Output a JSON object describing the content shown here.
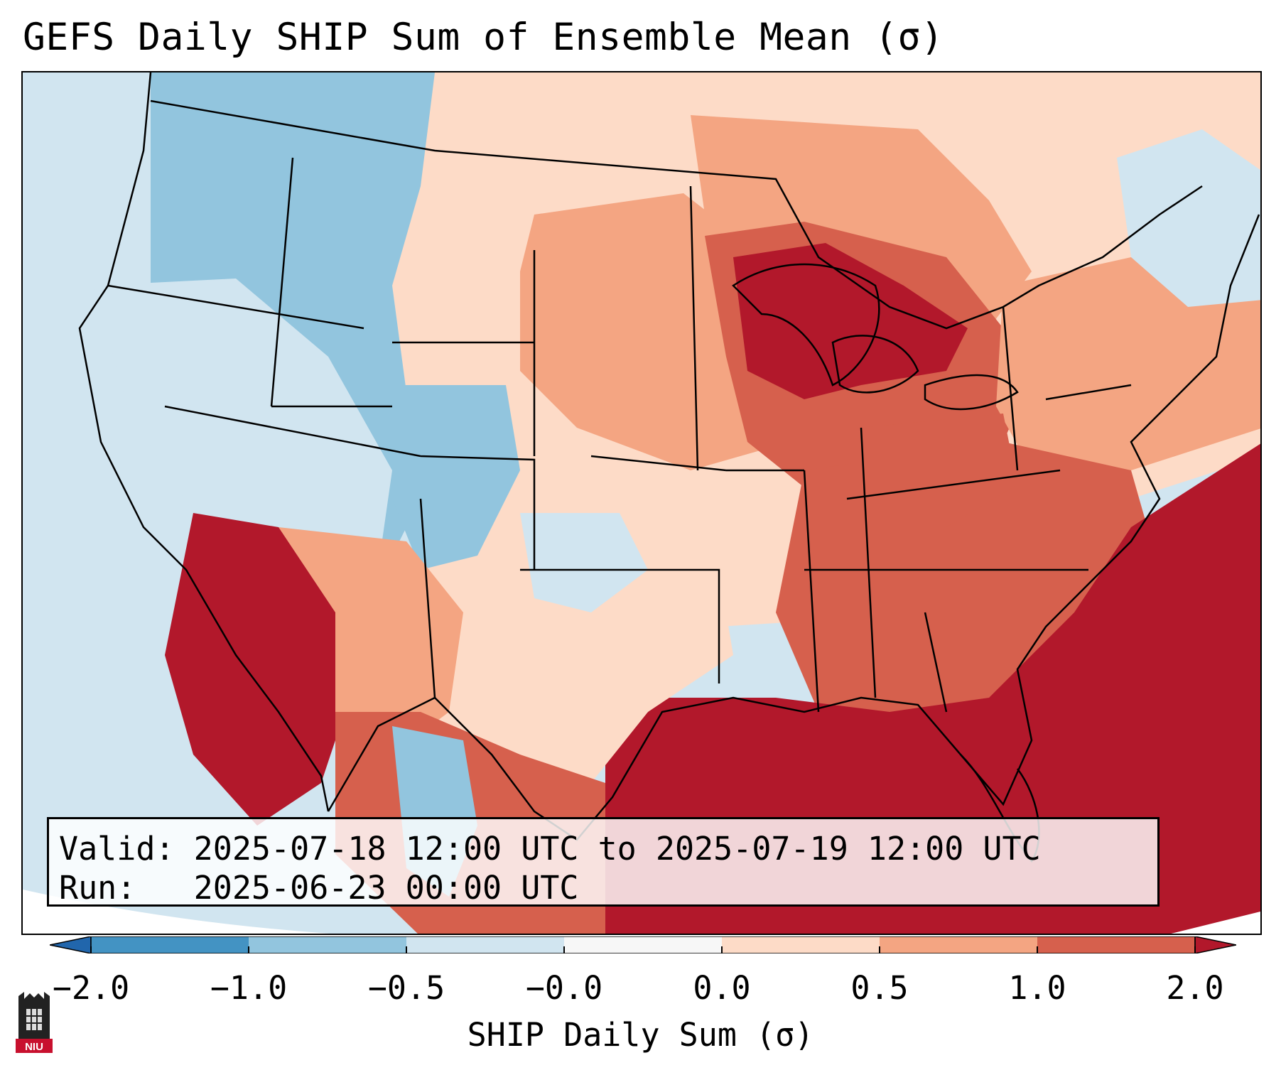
{
  "title": "GEFS Daily SHIP Sum of Ensemble Mean (σ)",
  "info_box": {
    "valid_line": "Valid: 2025-07-18 12:00 UTC to 2025-07-19 12:00 UTC",
    "run_line": "Run:   2025-06-23 00:00 UTC"
  },
  "colorbar": {
    "label": "SHIP Daily Sum (σ)",
    "tick_labels": [
      "−2.0",
      "−1.0",
      "−0.5",
      "−0.0",
      "0.0",
      "0.5",
      "1.0",
      "2.0"
    ],
    "extend": "both",
    "bins": [
      {
        "range": "< -2.0",
        "color": "#2166ac"
      },
      {
        "range": "-2.0 to -1.0",
        "color": "#4393c3"
      },
      {
        "range": "-1.0 to -0.5",
        "color": "#92c5de"
      },
      {
        "range": "-0.5 to -0.0",
        "color": "#d1e5f0"
      },
      {
        "range": "-0.0 to 0.0",
        "color": "#f7f7f7"
      },
      {
        "range": "0.0 to 0.5",
        "color": "#fddbc7"
      },
      {
        "range": "0.5 to 1.0",
        "color": "#f4a582"
      },
      {
        "range": "1.0 to 2.0",
        "color": "#d6604d"
      },
      {
        "range": "> 2.0",
        "color": "#b2182b"
      }
    ]
  },
  "map": {
    "region": "Contiguous United States",
    "projection": "conic",
    "features": [
      "state boundaries",
      "coastlines",
      "Great Lakes"
    ],
    "regional_values": [
      {
        "region": "Pacific Northwest / Northern Rockies",
        "category": "-1.0 to -0.5"
      },
      {
        "region": "Great Basin / Intermountain West",
        "category": "-0.5 to -0.0"
      },
      {
        "region": "Colorado / Central Rockies",
        "category": "-1.0 to -0.5"
      },
      {
        "region": "Northern Plains",
        "category": "0.5 to 1.0"
      },
      {
        "region": "Upper Midwest / Great Lakes",
        "category": "> 2.0"
      },
      {
        "region": "Ohio Valley",
        "category": "1.0 to 2.0"
      },
      {
        "region": "Desert Southwest",
        "category": "> 2.0"
      },
      {
        "region": "Southeast",
        "category": "1.0 to 2.0"
      },
      {
        "region": "Gulf Coast / Florida / Atlantic",
        "category": "> 2.0"
      },
      {
        "region": "Southern Plains",
        "category": "0.0 to 0.5"
      },
      {
        "region": "Northeast",
        "category": "0.5 to 1.0"
      }
    ]
  },
  "logo": {
    "text": "NIU",
    "icon": "niu-logo-icon"
  }
}
